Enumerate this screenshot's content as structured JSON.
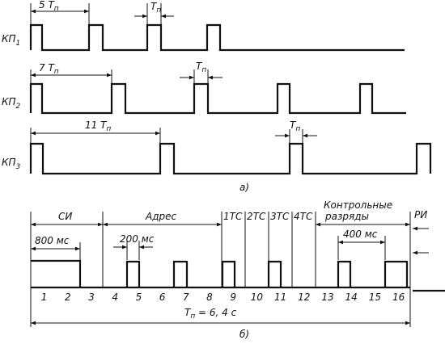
{
  "part_a": {
    "caption": "а)",
    "rows": [
      {
        "name": "КП",
        "index": "1",
        "interval": {
          "text": "5 T",
          "sub": "п"
        },
        "pulse": {
          "text": "T",
          "sub": "п"
        }
      },
      {
        "name": "КП",
        "index": "2",
        "interval": {
          "text": "7 T",
          "sub": "п"
        },
        "pulse": {
          "text": "T",
          "sub": "п"
        }
      },
      {
        "name": "КП",
        "index": "3",
        "interval": {
          "text": "11 T",
          "sub": "п"
        },
        "pulse": {
          "text": "T",
          "sub": "п"
        }
      }
    ]
  },
  "part_b": {
    "caption": "б)",
    "groups": [
      "СИ",
      "Адрес",
      "1ТС",
      "2ТС",
      "3ТС",
      "4ТС"
    ],
    "control": [
      "Контрольные",
      "разряды"
    ],
    "ri": "РИ",
    "durations": [
      "800 мс",
      "200 мс",
      "400 мс"
    ],
    "slots": [
      "1",
      "2",
      "3",
      "4",
      "5",
      "6",
      "7",
      "8",
      "9",
      "10",
      "11",
      "12",
      "13",
      "14",
      "15",
      "16"
    ],
    "period": {
      "text": "T",
      "sub": "п",
      "rest": " = 6, 4 с"
    }
  }
}
